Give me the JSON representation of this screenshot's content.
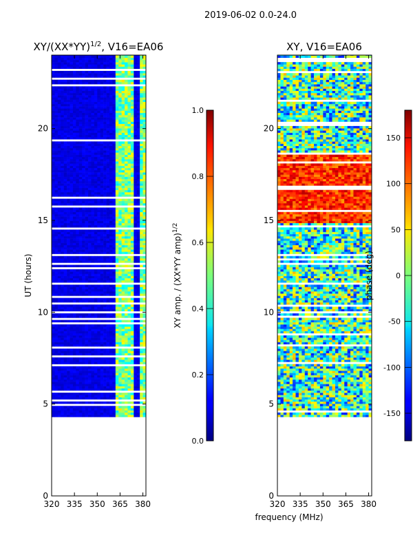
{
  "suptitle": "2019-06-02 0.0-24.0",
  "chart_data": [
    {
      "type": "heatmap",
      "title_main": "XY/(XX*YY)",
      "title_sup": "1/2",
      "title_tail": ", V16=EA06",
      "ylabel": "UT (hours)",
      "xlabel": "",
      "xlim": [
        320,
        382
      ],
      "ylim": [
        0,
        24
      ],
      "xticks": [
        320,
        335,
        350,
        365,
        380
      ],
      "yticks": [
        0,
        5,
        10,
        15,
        20
      ],
      "data_range_hours": [
        4.3,
        24.0
      ],
      "bright_channels_mhz": [
        [
          362,
          366
        ],
        [
          366,
          370
        ],
        [
          370,
          374
        ],
        [
          378,
          382
        ]
      ],
      "colorbar": {
        "label_main": "XY amp. / (XX*YY amp)",
        "label_sup": "1/2",
        "range": [
          0.0,
          1.0
        ],
        "ticks": [
          "0.0",
          "0.2",
          "0.4",
          "0.6",
          "0.8",
          "1.0"
        ]
      }
    },
    {
      "type": "heatmap",
      "title_main": "XY, V16=EA06",
      "ylabel": "",
      "xlabel": "frequency (MHz)",
      "xlim": [
        320,
        382
      ],
      "ylim": [
        0,
        24
      ],
      "xticks": [
        320,
        335,
        350,
        365,
        380
      ],
      "yticks": [
        0,
        5,
        10,
        15,
        20
      ],
      "data_range_hours": [
        4.3,
        24.0
      ],
      "high_phase_band_hours": [
        14.8,
        18.6
      ],
      "colorbar": {
        "label": "phase (deg)",
        "range": [
          -180,
          180
        ],
        "ticks": [
          "-150",
          "-100",
          "-50",
          "0",
          "50",
          "100",
          "150"
        ]
      }
    }
  ]
}
